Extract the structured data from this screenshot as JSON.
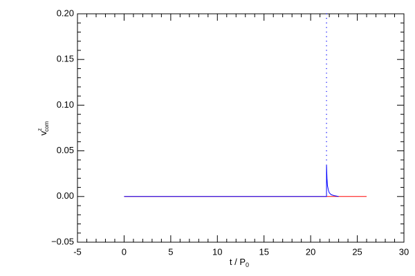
{
  "chart_data": {
    "type": "line",
    "xlabel": {
      "base": "t / P",
      "sub": "0"
    },
    "ylabel": {
      "base": "v",
      "sup": "z",
      "sub": "com"
    },
    "xlim": [
      -5,
      30
    ],
    "xticks": [
      -5,
      0,
      5,
      10,
      15,
      20,
      25,
      30
    ],
    "xminor": 5,
    "ylim": [
      -0.05,
      0.2
    ],
    "yticks": [
      {
        "value": -0.05,
        "label": "−0.05"
      },
      {
        "value": 0,
        "label": "0.00"
      },
      {
        "value": 0.05,
        "label": "0.05"
      },
      {
        "value": 0.1,
        "label": "0.10"
      },
      {
        "value": 0.15,
        "label": "0.15"
      },
      {
        "value": 0.2,
        "label": "0.20"
      }
    ],
    "yminor": 5,
    "series": [
      {
        "color": "#ff0000",
        "style": "solid",
        "x": [
          0,
          26
        ],
        "values": [
          0,
          0
        ]
      },
      {
        "color": "#0000ff",
        "style": "solid",
        "x": [
          0,
          21.7,
          21.7,
          21.75,
          21.8,
          21.9,
          22.0,
          22.2,
          22.5,
          23.0
        ],
        "values": [
          0,
          0,
          0.035,
          0.02,
          0.012,
          0.007,
          0.004,
          0.002,
          0.001,
          0
        ]
      },
      {
        "color": "#0000ff",
        "style": "dots",
        "x": [
          21.7,
          21.7,
          21.7,
          21.7,
          21.7,
          21.7,
          21.7,
          21.7,
          21.7,
          21.7,
          21.7,
          21.7,
          21.7,
          21.7,
          21.7,
          21.7,
          21.7,
          21.7,
          21.7,
          21.7,
          21.7,
          21.7,
          21.7,
          21.7,
          21.7,
          21.7,
          21.7,
          21.7,
          21.7,
          21.7,
          21.7,
          21.7,
          21.7
        ],
        "values": [
          0.04,
          0.045,
          0.05,
          0.055,
          0.06,
          0.065,
          0.07,
          0.075,
          0.08,
          0.085,
          0.09,
          0.095,
          0.1,
          0.105,
          0.11,
          0.115,
          0.12,
          0.125,
          0.13,
          0.135,
          0.14,
          0.145,
          0.15,
          0.155,
          0.16,
          0.165,
          0.17,
          0.175,
          0.18,
          0.185,
          0.19,
          0.195,
          0.2
        ]
      }
    ]
  }
}
